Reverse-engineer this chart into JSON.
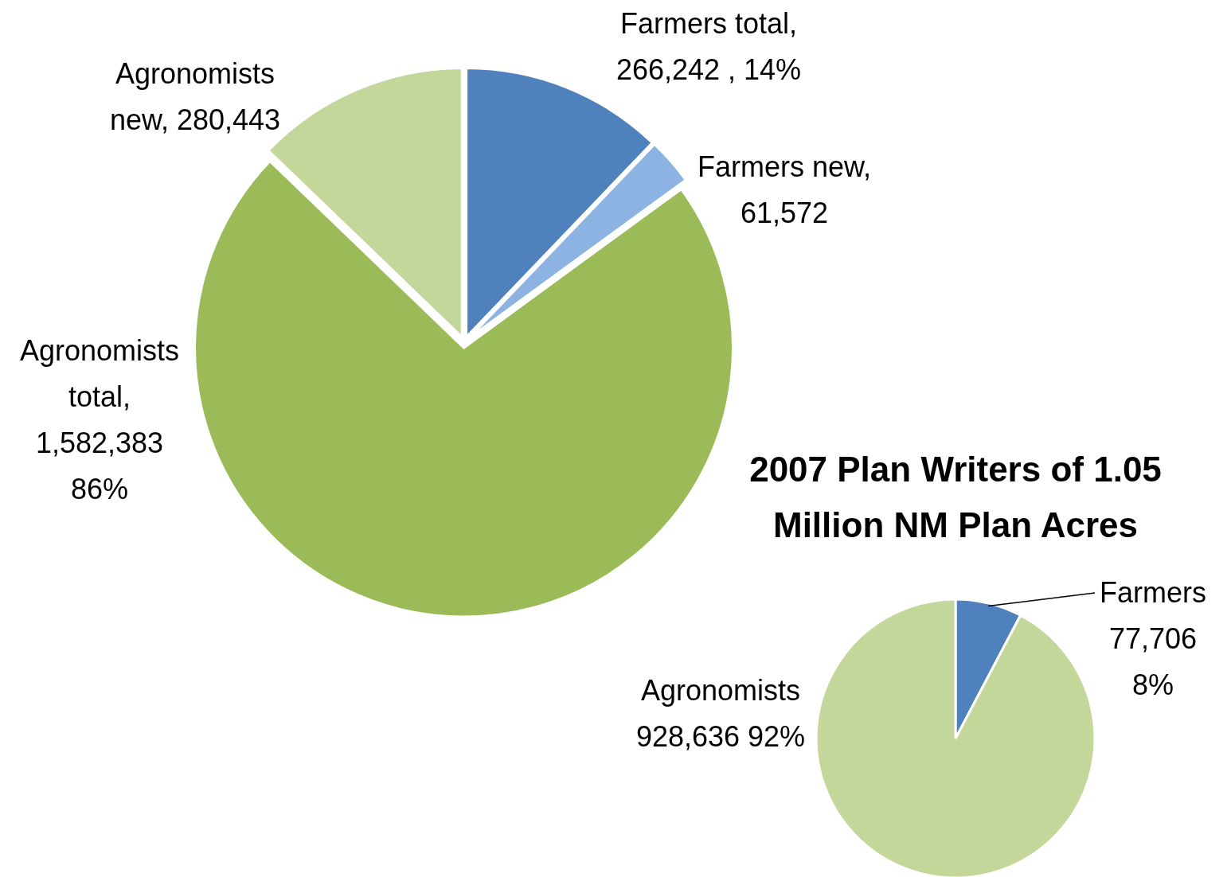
{
  "chart_data": [
    {
      "type": "pie",
      "categories": [
        "Farmers total",
        "Farmers new",
        "Agronomists total",
        "Agronomists new"
      ],
      "values": [
        266242,
        61572,
        1582383,
        280443
      ],
      "colors": [
        "#4f81bd",
        "#8db3e2",
        "#9bbb59",
        "#c4d79b"
      ],
      "value_labels": [
        ", 266,242 , 14%",
        ", 61,572",
        ", 1,582,383 86%",
        ", 280,443"
      ]
    },
    {
      "type": "pie",
      "title": "2007 Plan Writers of 1.05 Million NM Plan Acres",
      "categories": [
        "Farmers",
        "Agronomists"
      ],
      "values": [
        77706,
        928636
      ],
      "colors": [
        "#4f81bd",
        "#c4d79b"
      ],
      "value_labels": [
        "77,706 8%",
        "928,636 92%"
      ]
    }
  ]
}
